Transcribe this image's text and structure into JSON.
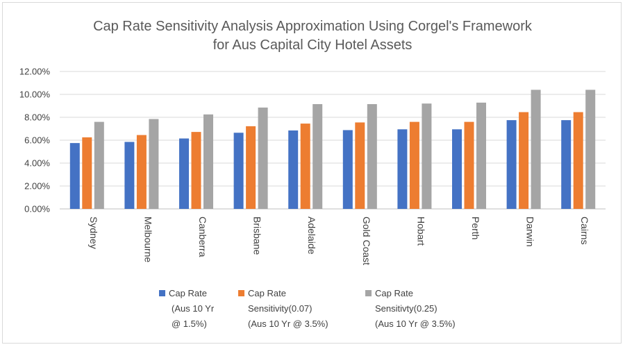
{
  "chart_data": {
    "type": "bar",
    "title": [
      "Cap Rate Sensitivity Analysis Approximation Using Corgel's Framework",
      "for Aus Capital City Hotel Assets"
    ],
    "xlabel": "",
    "ylabel": "",
    "ylim": [
      0,
      0.12
    ],
    "yticks": [
      0,
      0.02,
      0.04,
      0.06,
      0.08,
      0.1,
      0.12
    ],
    "ytick_labels": [
      "0.00%",
      "2.00%",
      "4.00%",
      "6.00%",
      "8.00%",
      "10.00%",
      "12.00%"
    ],
    "grid": true,
    "legend_position": "bottom",
    "categories": [
      "Sydney",
      "Melbourne",
      "Canberra",
      "Brisbane",
      "Adelaide",
      "Gold Coast",
      "Hobart",
      "Perth",
      "Darwin",
      "Cairns"
    ],
    "series": [
      {
        "name": "Cap Rate (Aus 10 Yr @ 1.5%)",
        "legend_lines": [
          "Cap Rate",
          "(Aus 10 Yr",
          "@ 1.5%)"
        ],
        "color": "#4472c4",
        "values": [
          0.0575,
          0.0585,
          0.0615,
          0.0665,
          0.0685,
          0.0688,
          0.0695,
          0.0695,
          0.0775,
          0.0775
        ]
      },
      {
        "name": "Cap Rate Sensitivity(0.07) (Aus 10 Yr @ 3.5%)",
        "legend_lines": [
          "Cap Rate",
          "Sensitivity(0.07)",
          "(Aus 10 Yr @ 3.5%)"
        ],
        "color": "#ed7d31",
        "values": [
          0.0625,
          0.0645,
          0.0672,
          0.0722,
          0.0745,
          0.0755,
          0.076,
          0.076,
          0.0845,
          0.0845
        ]
      },
      {
        "name": "Cap Rate Sensitivty(0.25) (Aus 10 Yr @ 3.5%)",
        "legend_lines": [
          "Cap Rate",
          "Sensitivty(0.25)",
          "(Aus 10 Yr @ 3.5%)"
        ],
        "color": "#a5a5a5",
        "values": [
          0.076,
          0.0785,
          0.0825,
          0.0885,
          0.0915,
          0.0915,
          0.092,
          0.0928,
          0.104,
          0.104
        ]
      }
    ]
  }
}
